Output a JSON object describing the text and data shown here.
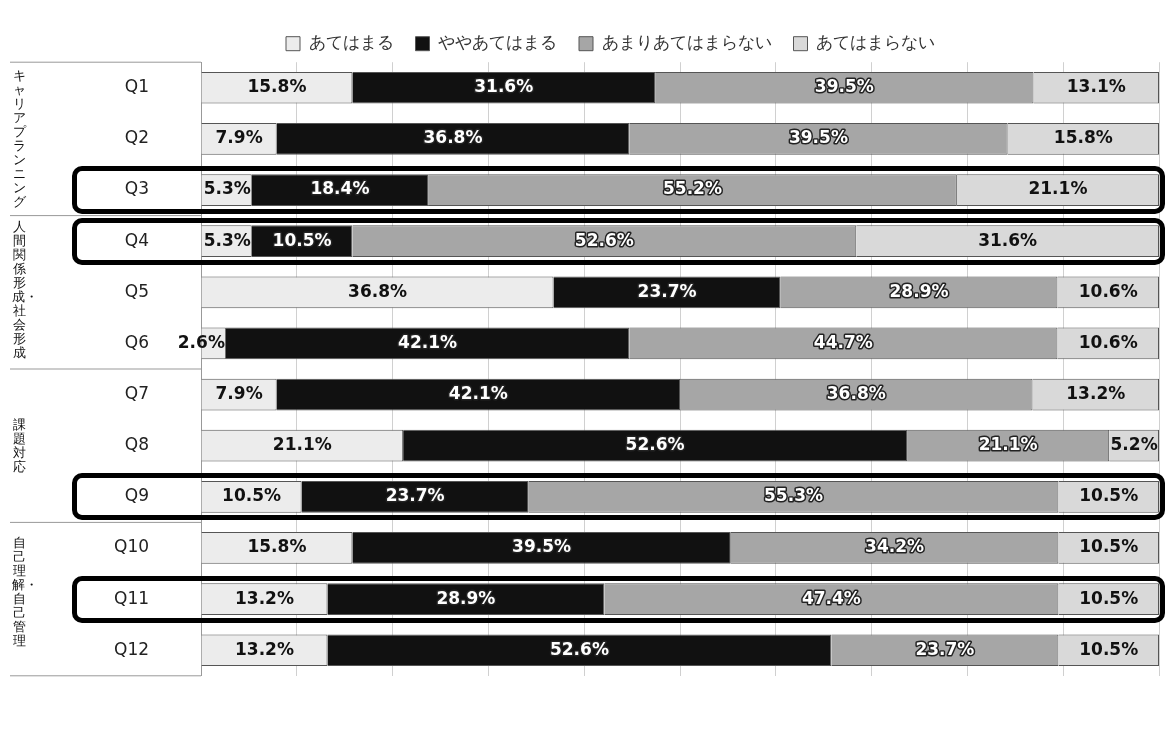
{
  "chart_data": {
    "type": "bar",
    "orientation": "horizontal",
    "stacked": true,
    "categories": [
      "Q1",
      "Q2",
      "Q3",
      "Q4",
      "Q5",
      "Q6",
      "Q7",
      "Q8",
      "Q9",
      "Q10",
      "Q11",
      "Q12"
    ],
    "series": [
      {
        "name": "あてはまる",
        "color": "#ececec",
        "values": [
          15.8,
          7.9,
          5.3,
          5.3,
          36.8,
          2.6,
          7.9,
          21.1,
          10.5,
          15.8,
          13.2,
          13.2
        ],
        "value_labels": [
          "15.8%",
          "7.9%",
          "5.3%",
          "5.3%",
          "36.8%",
          "2.6%",
          "7.9%",
          "21.1%",
          "10.5%",
          "15.8%",
          "13.2%",
          "13.2%"
        ]
      },
      {
        "name": "ややあてはまる",
        "color": "#111111",
        "values": [
          31.6,
          36.8,
          18.4,
          10.5,
          23.7,
          42.1,
          42.1,
          52.6,
          23.7,
          39.5,
          28.9,
          52.6
        ],
        "value_labels": [
          "31.6%",
          "36.8%",
          "18.4%",
          "10.5%",
          "23.7%",
          "42.1%",
          "42.1%",
          "52.6%",
          "23.7%",
          "39.5%",
          "28.9%",
          "52.6%"
        ]
      },
      {
        "name": "あまりあてはまらない",
        "color": "#a6a6a6",
        "values": [
          39.5,
          39.5,
          55.2,
          52.6,
          28.9,
          44.7,
          36.8,
          21.1,
          55.3,
          34.2,
          47.4,
          23.7
        ],
        "value_labels": [
          "39.5%",
          "39.5%",
          "55.2%",
          "52.6%",
          "28.9%",
          "44.7%",
          "36.8%",
          "21.1%",
          "55.3%",
          "34.2%",
          "47.4%",
          "23.7%"
        ]
      },
      {
        "name": "あてはまらない",
        "color": "#d9d9d9",
        "values": [
          13.1,
          15.8,
          21.1,
          31.6,
          10.6,
          10.6,
          13.2,
          5.2,
          10.5,
          10.5,
          10.5,
          10.5
        ],
        "value_labels": [
          "13.1%",
          "15.8%",
          "21.1%",
          "31.6%",
          "10.6%",
          "10.6%",
          "13.2%",
          "5.2%",
          "10.5%",
          "10.5%",
          "10.5%",
          "10.5%"
        ]
      }
    ],
    "tick_labels": "y",
    "grid": "x",
    "legend": "top",
    "annotations": [
      "キャリアプランニング",
      "人間関係形成・社会形成",
      "課題対応",
      "自己理解・自己管理"
    ]
  }
}
